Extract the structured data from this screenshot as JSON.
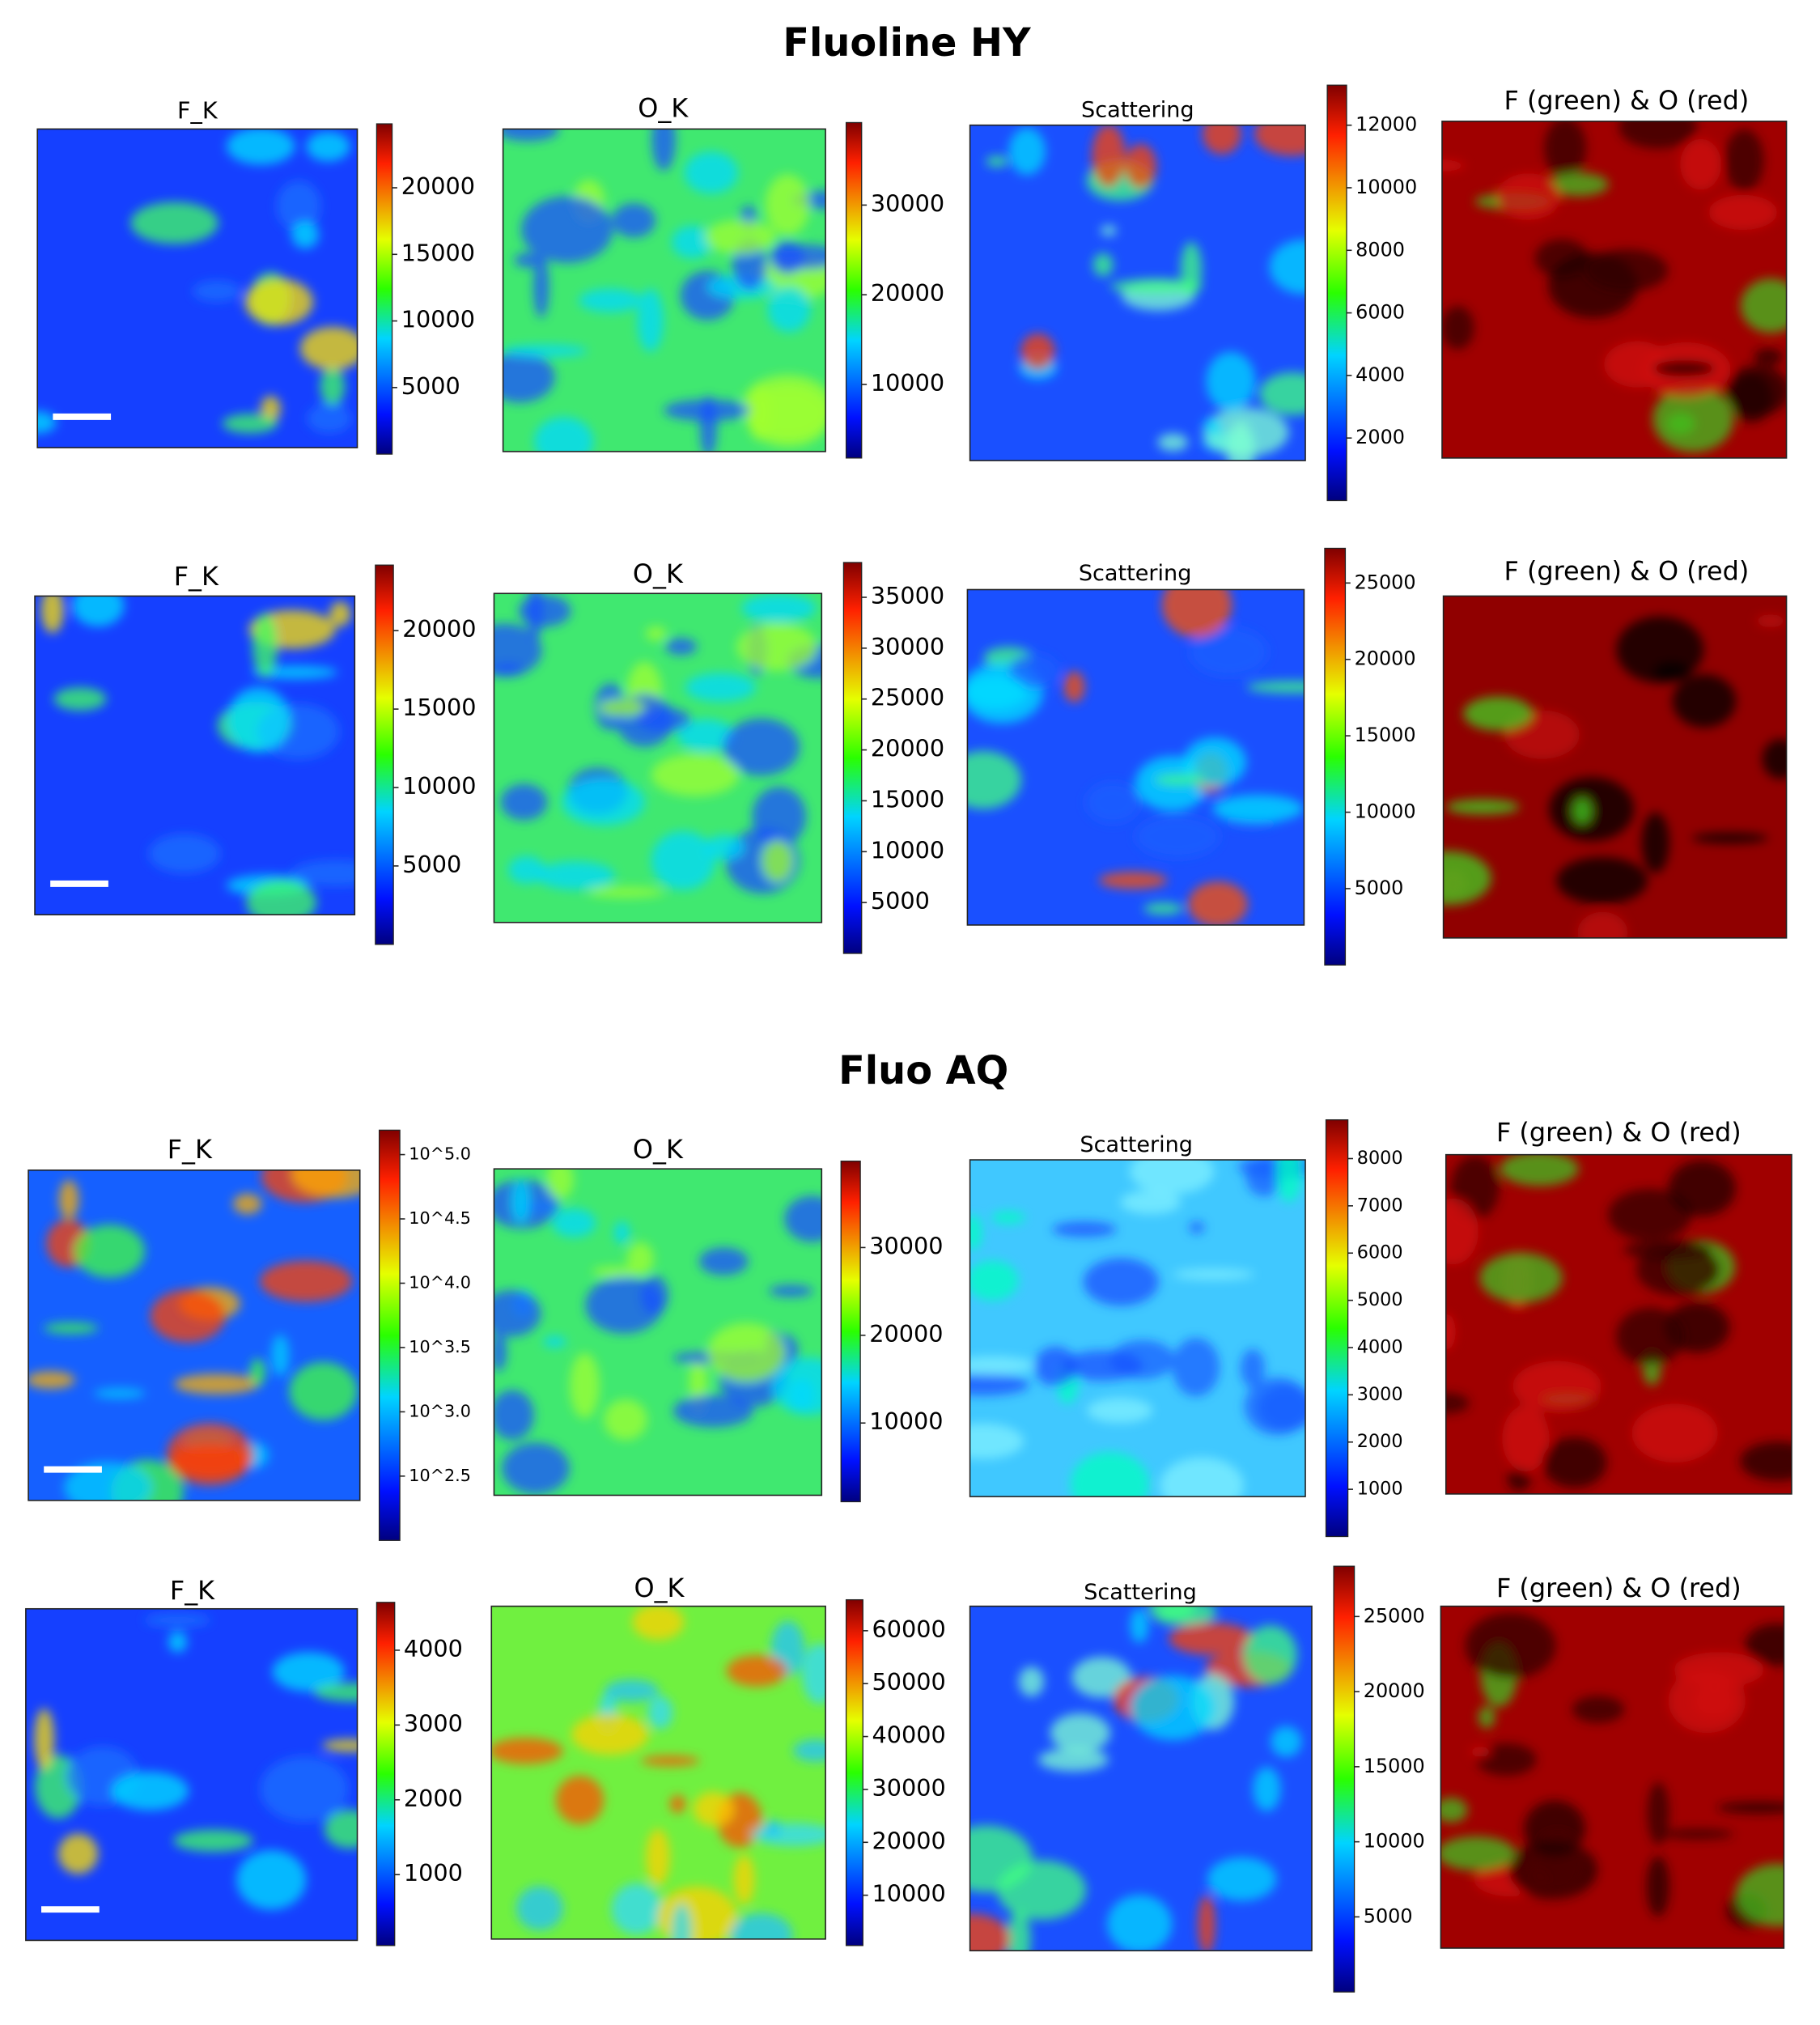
{
  "sections": [
    {
      "title": "Fluoline HY",
      "rows": [
        [
          {
            "title": "F_K",
            "colorbar": {
              "lim": [
                0,
                24800
              ],
              "ticks": [
                5000,
                10000,
                15000,
                20000
              ]
            }
          },
          {
            "title": "O_K",
            "colorbar": {
              "lim": [
                1800,
                39200
              ],
              "ticks": [
                10000,
                20000,
                30000
              ]
            }
          },
          {
            "title": "Scattering",
            "colorbar": {
              "lim": [
                0,
                13280
              ],
              "ticks": [
                2000,
                4000,
                6000,
                8000,
                10000,
                12000
              ]
            }
          },
          {
            "title": "F (green) & O (red)"
          }
        ],
        [
          {
            "title": "F_K",
            "colorbar": {
              "lim": [
                0,
                24180
              ],
              "ticks": [
                5000,
                10000,
                15000,
                20000
              ]
            }
          },
          {
            "title": "O_K",
            "colorbar": {
              "lim": [
                0,
                38420
              ],
              "ticks": [
                5000,
                10000,
                15000,
                20000,
                25000,
                30000,
                35000
              ]
            }
          },
          {
            "title": "Scattering",
            "colorbar": {
              "lim": [
                0,
                27270
              ],
              "ticks": [
                5000,
                10000,
                15000,
                20000,
                25000
              ]
            }
          },
          {
            "title": "F (green) & O (red)"
          }
        ]
      ]
    },
    {
      "title": "Fluo AQ",
      "rows": [
        [
          {
            "title": "F_K",
            "colorbar": {
              "lim": [
                2.0,
                5.19
              ],
              "ticks": [
                {
                  "value": 2.5,
                  "label": "10^2.5"
                },
                {
                  "value": 3.0,
                  "label": "10^3.0"
                },
                {
                  "value": 3.5,
                  "label": "10^3.5"
                },
                {
                  "value": 4.0,
                  "label": "10^4.0"
                },
                {
                  "value": 4.5,
                  "label": "10^4.5"
                },
                {
                  "value": 5.0,
                  "label": "10^5.0"
                }
              ]
            }
          },
          {
            "title": "O_K",
            "colorbar": {
              "lim": [
                1030,
                39850
              ],
              "ticks": [
                10000,
                20000,
                30000
              ]
            }
          },
          {
            "title": "Scattering",
            "colorbar": {
              "lim": [
                0,
                8820
              ],
              "ticks": [
                1000,
                2000,
                3000,
                4000,
                5000,
                6000,
                7000,
                8000
              ]
            }
          },
          {
            "title": "F (green) & O (red)"
          }
        ],
        [
          {
            "title": "F_K",
            "colorbar": {
              "lim": [
                52,
                4640
              ],
              "ticks": [
                1000,
                2000,
                3000,
                4000
              ]
            }
          },
          {
            "title": "O_K",
            "colorbar": {
              "lim": [
                490,
                65850
              ],
              "ticks": [
                10000,
                20000,
                30000,
                40000,
                50000,
                60000
              ]
            }
          },
          {
            "title": "Scattering",
            "colorbar": {
              "lim": [
                0,
                28350
              ],
              "ticks": [
                5000,
                10000,
                15000,
                20000,
                25000
              ]
            }
          },
          {
            "title": "F (green) & O (red)"
          }
        ]
      ]
    }
  ]
}
